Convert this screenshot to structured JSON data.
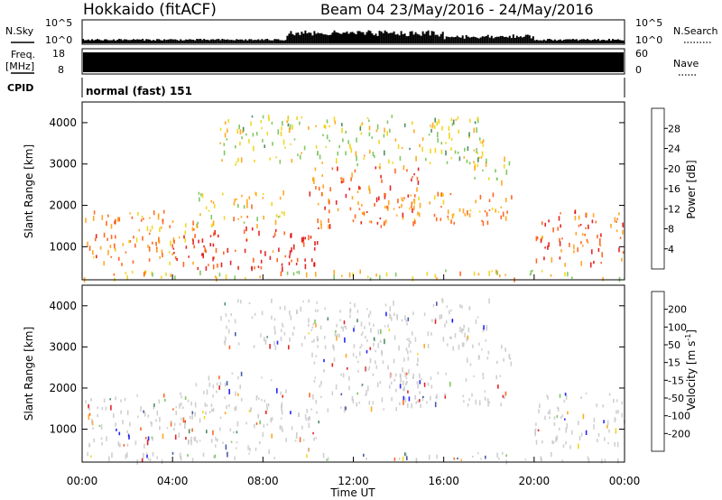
{
  "header": {
    "station": "Hokkaido (fitACF)",
    "beam_date": "Beam 04 23/May/2016 - 24/May/2016"
  },
  "top_panels": {
    "nsky_label": "N.Sky",
    "nsearch_label": "N.Search",
    "nsky_ticks": [
      "10^5",
      "10^0"
    ],
    "nsearch_ticks": [
      "10^5",
      "10^0"
    ],
    "freq_label": "Freq.",
    "freq_unit": "[MHz]",
    "freq_ticks": [
      "18",
      "8"
    ],
    "nave_label": "Nave",
    "nave_ticks": [
      "60",
      "0"
    ],
    "cpid_label": "CPID",
    "cpid_text": "normal (fast) 151"
  },
  "colors": {
    "power": [
      "#0000ff",
      "#2a3f9a",
      "#2e7d4a",
      "#6cc04a",
      "#f0d000",
      "#ff9a00",
      "#ff5000",
      "#e00000"
    ],
    "velocity": [
      "#e00000",
      "#ff5000",
      "#ff9a00",
      "#f0d000",
      "#c8c8c8",
      "#c8c8c8",
      "#6cc04a",
      "#2e7d4a",
      "#2a3f9a",
      "#0000ff"
    ]
  },
  "chart_data": [
    {
      "type": "heatmap",
      "panel": "power",
      "ylabel": "Slant Range [km]",
      "yticks": [
        "1000",
        "2000",
        "3000",
        "4000"
      ],
      "ylim": [
        200,
        4500
      ],
      "colorbar_label": "Power [dB]",
      "colorbar_ticks": [
        "4",
        "8",
        "12",
        "16",
        "20",
        "24",
        "28"
      ],
      "colorbar_range": [
        0,
        32
      ],
      "regions": [
        {
          "x_start_h": 0,
          "x_end_h": 5,
          "range_low_km": 600,
          "range_high_km": 1900,
          "level": 0.72
        },
        {
          "x_start_h": 4,
          "x_end_h": 10.5,
          "range_low_km": 500,
          "range_high_km": 1500,
          "level": 0.92
        },
        {
          "x_start_h": 5,
          "x_end_h": 9,
          "range_low_km": 1500,
          "range_high_km": 2400,
          "level": 0.6
        },
        {
          "x_start_h": 10,
          "x_end_h": 15,
          "range_low_km": 1500,
          "range_high_km": 3000,
          "level": 0.8
        },
        {
          "x_start_h": 14,
          "x_end_h": 19,
          "range_low_km": 1600,
          "range_high_km": 2400,
          "level": 0.7
        },
        {
          "x_start_h": 17,
          "x_end_h": 19,
          "range_low_km": 2600,
          "range_high_km": 3200,
          "level": 0.55
        },
        {
          "x_start_h": 20,
          "x_end_h": 24,
          "range_low_km": 600,
          "range_high_km": 1900,
          "level": 0.82
        },
        {
          "x_start_h": 0,
          "x_end_h": 24,
          "range_low_km": 250,
          "range_high_km": 450,
          "level": 0.6
        },
        {
          "x_start_h": 6,
          "x_end_h": 18,
          "range_low_km": 3000,
          "range_high_km": 4200,
          "level": 0.5
        }
      ]
    },
    {
      "type": "heatmap",
      "panel": "velocity",
      "ylabel": "Slant Range [km]",
      "yticks": [
        "1000",
        "2000",
        "3000",
        "4000"
      ],
      "ylim": [
        200,
        4500
      ],
      "colorbar_label": "Velocity [m s",
      "colorbar_label_sup": "-1",
      "colorbar_label_end": "]",
      "colorbar_ticks": [
        "-200",
        "-100",
        "-50",
        "-15",
        "15",
        "50",
        "100",
        "200"
      ],
      "xlabel": "Time UT",
      "xticks": [
        "00:00",
        "04:00",
        "08:00",
        "12:00",
        "16:00",
        "20:00",
        "00:00"
      ],
      "xlim_hours": [
        0,
        24
      ],
      "regions": [
        {
          "x_start_h": 0,
          "x_end_h": 5,
          "range_low_km": 600,
          "range_high_km": 1900,
          "level": 0.5
        },
        {
          "x_start_h": 4,
          "x_end_h": 10.5,
          "range_low_km": 500,
          "range_high_km": 1500,
          "level": 0.5
        },
        {
          "x_start_h": 5,
          "x_end_h": 9,
          "range_low_km": 1500,
          "range_high_km": 2400,
          "level": 0.5
        },
        {
          "x_start_h": 10,
          "x_end_h": 15,
          "range_low_km": 1500,
          "range_high_km": 3000,
          "level": 0.5
        },
        {
          "x_start_h": 14,
          "x_end_h": 19,
          "range_low_km": 1600,
          "range_high_km": 2400,
          "level": 0.5
        },
        {
          "x_start_h": 17,
          "x_end_h": 19,
          "range_low_km": 2600,
          "range_high_km": 3200,
          "level": 0.62
        },
        {
          "x_start_h": 20,
          "x_end_h": 24,
          "range_low_km": 600,
          "range_high_km": 1900,
          "level": 0.5
        },
        {
          "x_start_h": 0,
          "x_end_h": 24,
          "range_low_km": 250,
          "range_high_km": 450,
          "level": 0.3
        },
        {
          "x_start_h": 6,
          "x_end_h": 18,
          "range_low_km": 3000,
          "range_high_km": 4200,
          "level": 0.5
        }
      ]
    }
  ]
}
